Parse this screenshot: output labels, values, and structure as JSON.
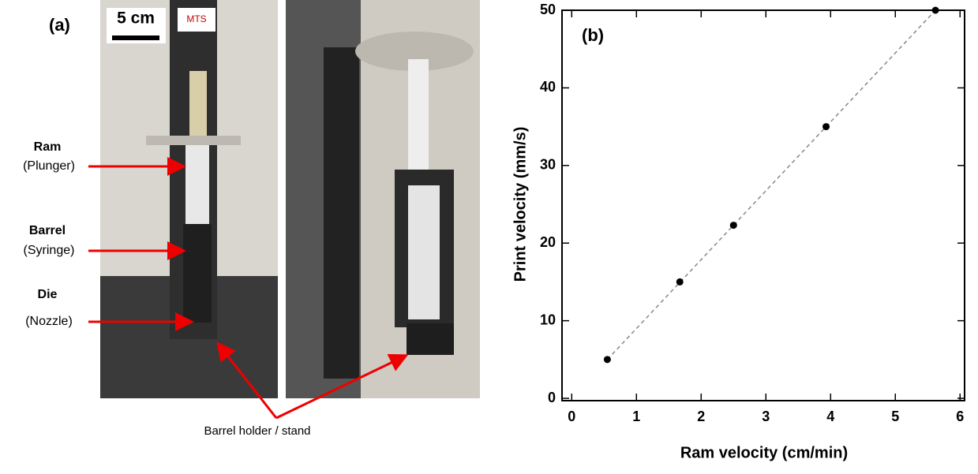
{
  "panel_a": {
    "label": "(a)",
    "scale_bar": "5 cm",
    "brand": "MTS",
    "parts": [
      {
        "name": "Ram",
        "detail": "(Plunger)"
      },
      {
        "name": "Barrel",
        "detail": "(Syringe)"
      },
      {
        "name": "Die",
        "detail": "(Nozzle)"
      }
    ],
    "holder_label": "Barrel holder / stand"
  },
  "chart_data": {
    "type": "scatter",
    "panel_label": "(b)",
    "x_label": "Ram velocity (cm/min)",
    "y_label": "Print velocity (mm/s)",
    "series": [
      {
        "color": "#000000",
        "x": [
          0.55,
          1.67,
          2.5,
          3.93,
          5.62
        ],
        "values": [
          5,
          15,
          22.3,
          35,
          50
        ]
      },
      {
        "type": "line",
        "style": "dashed",
        "color": "#888888",
        "x": [
          0.55,
          5.62
        ],
        "values": [
          5,
          50
        ]
      }
    ],
    "xlim": [
      -0.15,
      6.07
    ],
    "ylim": [
      -0.3,
      50
    ],
    "xticks": [
      0,
      1,
      2,
      3,
      4,
      5,
      6
    ],
    "yticks": [
      0,
      10,
      20,
      30,
      40,
      50
    ],
    "grid": false
  }
}
